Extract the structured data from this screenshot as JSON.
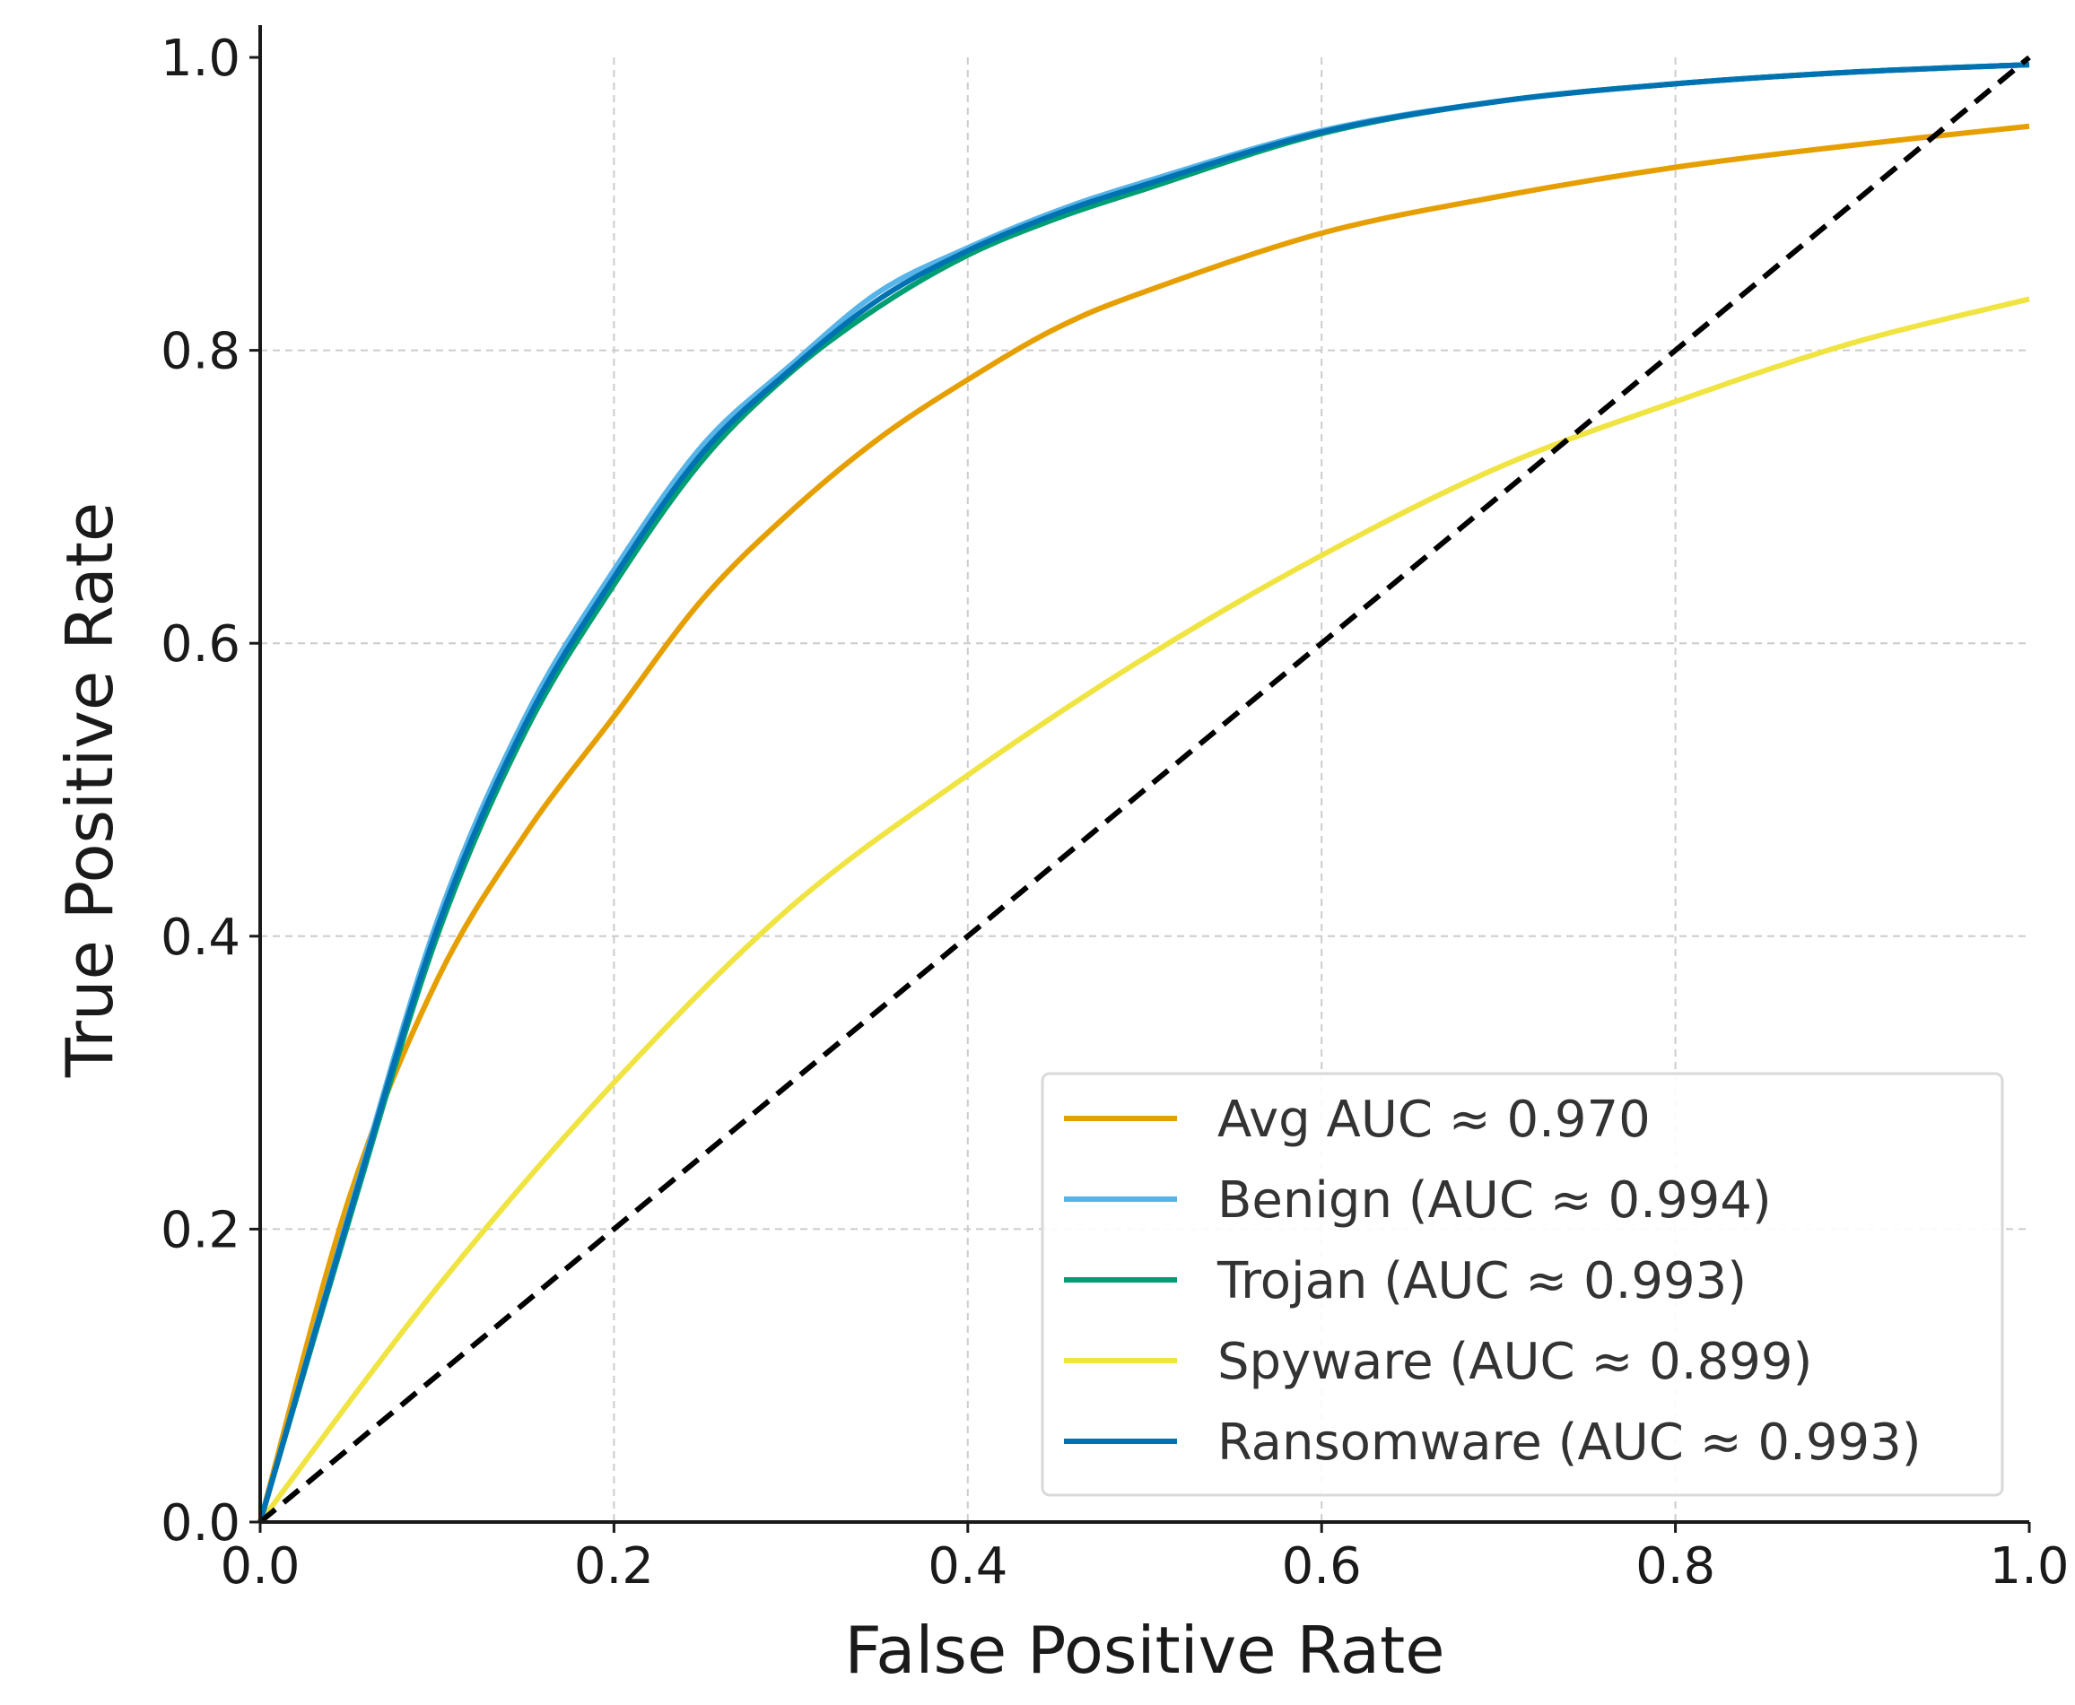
{
  "chart_data": {
    "type": "line",
    "title": "",
    "xlabel": "False Positive Rate",
    "ylabel": "True Positive Rate",
    "xlim": [
      0.0,
      1.0
    ],
    "ylim": [
      0.0,
      1.0
    ],
    "x_ticks": [
      "0.0",
      "0.2",
      "0.4",
      "0.6",
      "0.8",
      "1.0"
    ],
    "y_ticks": [
      "0.0",
      "0.2",
      "0.4",
      "0.6",
      "0.8",
      "1.0"
    ],
    "grid": true,
    "legend_position": "lower-right",
    "series": [
      {
        "name": "Avg AUC ≈ 0.970",
        "color": "#e69f00",
        "x": [
          0.0,
          0.05,
          0.1,
          0.15,
          0.2,
          0.25,
          0.3,
          0.35,
          0.4,
          0.45,
          0.5,
          0.6,
          0.7,
          0.8,
          0.9,
          1.0
        ],
        "y": [
          0.0,
          0.22,
          0.37,
          0.47,
          0.55,
          0.63,
          0.69,
          0.74,
          0.78,
          0.815,
          0.84,
          0.88,
          0.905,
          0.925,
          0.94,
          0.953
        ]
      },
      {
        "name": "Benign (AUC ≈ 0.994)",
        "color": "#56b4e9",
        "x": [
          0.0,
          0.05,
          0.1,
          0.15,
          0.2,
          0.25,
          0.3,
          0.35,
          0.4,
          0.45,
          0.5,
          0.6,
          0.7,
          0.8,
          0.9,
          1.0
        ],
        "y": [
          0.0,
          0.21,
          0.41,
          0.55,
          0.65,
          0.735,
          0.79,
          0.84,
          0.87,
          0.895,
          0.915,
          0.95,
          0.97,
          0.982,
          0.99,
          0.995
        ]
      },
      {
        "name": "Trojan (AUC ≈ 0.993)",
        "color": "#009e73",
        "x": [
          0.0,
          0.05,
          0.1,
          0.15,
          0.2,
          0.25,
          0.3,
          0.35,
          0.4,
          0.45,
          0.5,
          0.6,
          0.7,
          0.8,
          0.9,
          1.0
        ],
        "y": [
          0.0,
          0.205,
          0.4,
          0.54,
          0.64,
          0.725,
          0.785,
          0.83,
          0.865,
          0.89,
          0.91,
          0.948,
          0.97,
          0.982,
          0.99,
          0.995
        ]
      },
      {
        "name": "Spyware (AUC ≈ 0.899)",
        "color": "#f0e442",
        "x": [
          0.0,
          0.1,
          0.2,
          0.3,
          0.4,
          0.5,
          0.6,
          0.7,
          0.8,
          0.9,
          1.0
        ],
        "y": [
          0.0,
          0.16,
          0.3,
          0.42,
          0.51,
          0.59,
          0.66,
          0.72,
          0.765,
          0.805,
          0.835
        ]
      },
      {
        "name": "Ransomware (AUC ≈ 0.993)",
        "color": "#0072b2",
        "x": [
          0.0,
          0.05,
          0.1,
          0.15,
          0.2,
          0.25,
          0.3,
          0.35,
          0.4,
          0.45,
          0.5,
          0.6,
          0.7,
          0.8,
          0.9,
          1.0
        ],
        "y": [
          0.0,
          0.208,
          0.405,
          0.545,
          0.645,
          0.73,
          0.787,
          0.835,
          0.868,
          0.893,
          0.913,
          0.949,
          0.97,
          0.982,
          0.99,
          0.995
        ]
      }
    ],
    "reference_line": {
      "x": [
        0.0,
        1.0
      ],
      "y": [
        0.0,
        1.0
      ],
      "color": "#000000",
      "style": "dashed"
    }
  }
}
